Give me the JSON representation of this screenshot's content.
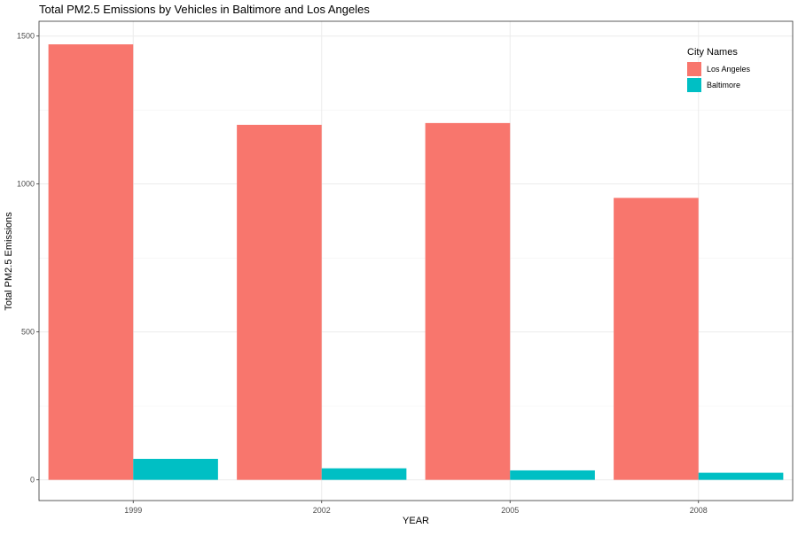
{
  "chart_data": {
    "type": "bar",
    "title": "Total PM2.5 Emissions by Vehicles in Baltimore and Los Angeles",
    "xlabel": "YEAR",
    "ylabel": "Total PM2.5 Emissions",
    "categories": [
      "1999",
      "2002",
      "2005",
      "2008"
    ],
    "series": [
      {
        "name": "Los Angeles",
        "color": "#F8766D",
        "values": [
          1472,
          1200,
          1206,
          953
        ]
      },
      {
        "name": "Baltimore",
        "color": "#00BFC4",
        "values": [
          71,
          39,
          32,
          24
        ]
      }
    ],
    "y_ticks": [
      0,
      500,
      1000,
      1500
    ],
    "ylim": [
      -70,
      1550
    ],
    "grid": true,
    "legend": {
      "title": "City Names",
      "placement": "top-right inside"
    }
  }
}
